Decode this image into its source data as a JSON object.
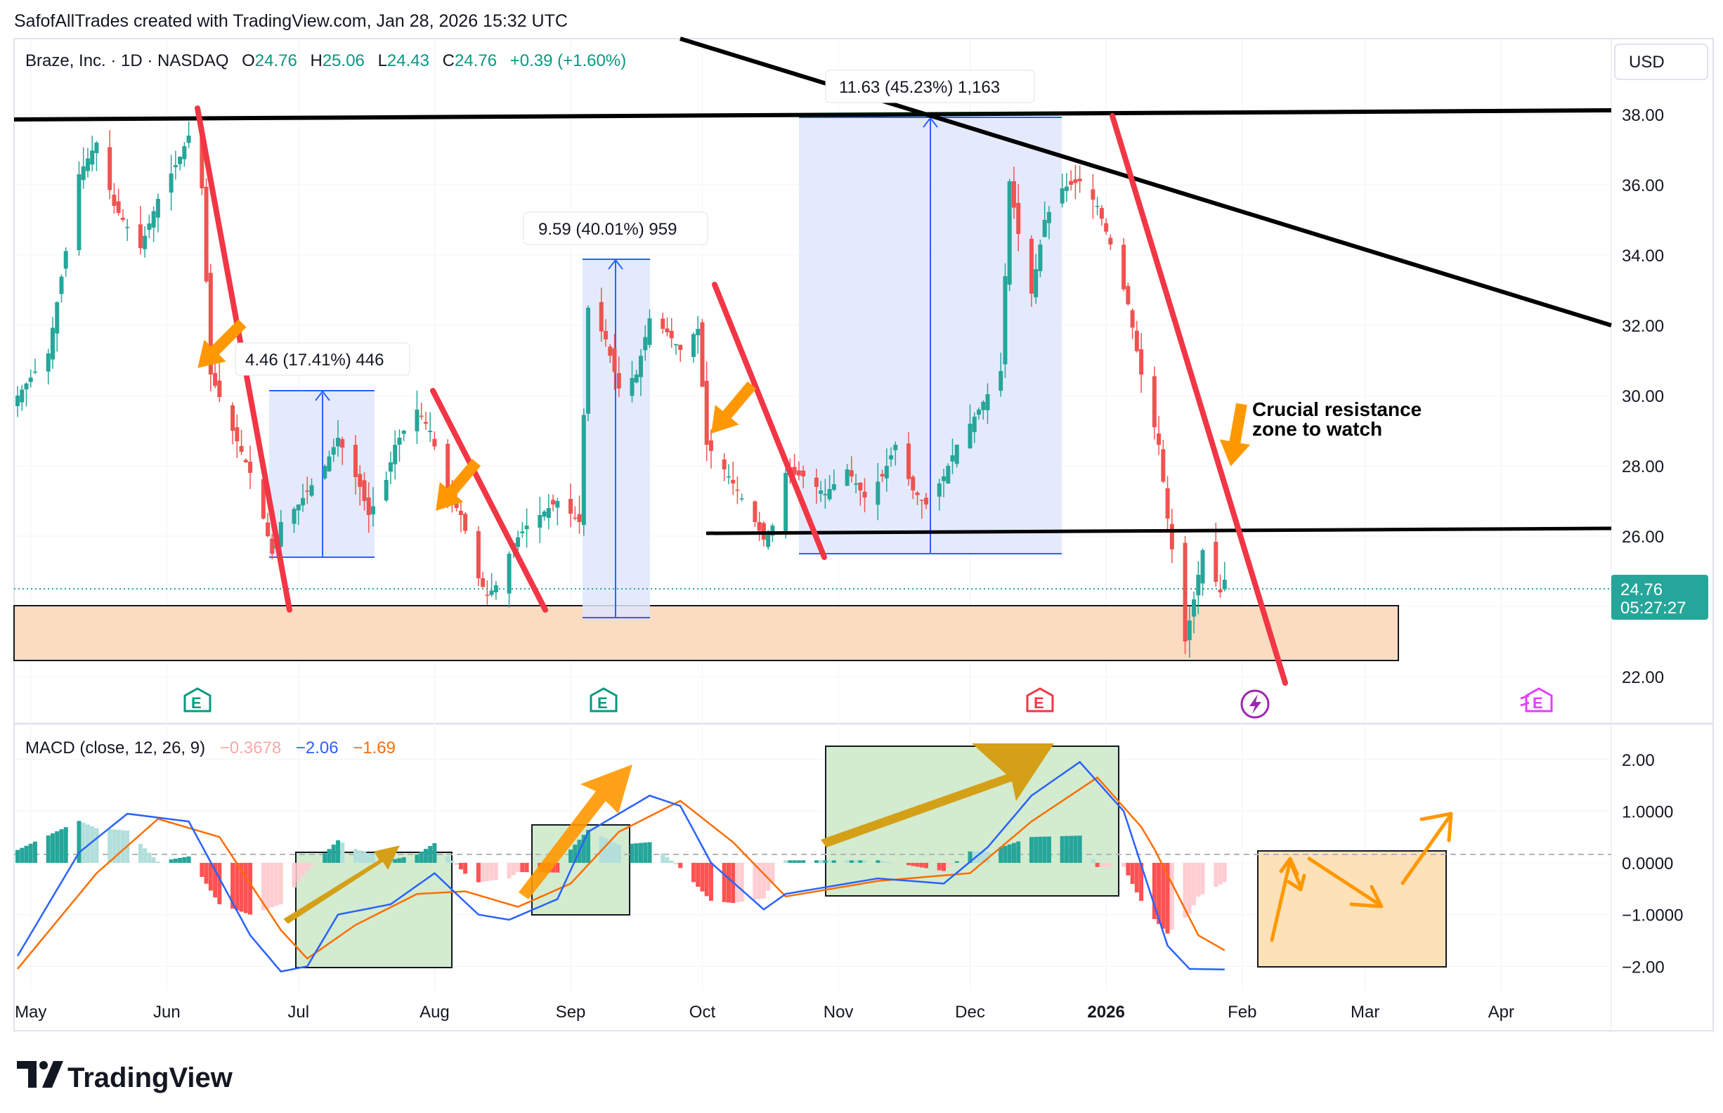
{
  "header": {
    "credit": "SafofAllTrades created with TradingView.com, Jan 28, 2026 15:32 UTC"
  },
  "legend": {
    "symbol": "Braze, Inc. · 1D · NASDAQ",
    "o_label": "O",
    "o": "24.76",
    "h_label": "H",
    "h": "25.06",
    "l_label": "L",
    "l": "24.43",
    "c_label": "C",
    "c": "24.76",
    "change": "+0.39 (+1.60%)"
  },
  "currency": "USD",
  "last_price": {
    "value": "24.76",
    "countdown": "05:27:27"
  },
  "macd_legend": {
    "title": "MACD (close, 12, 26, 9)",
    "hist": "−0.3678",
    "macd": "−2.06",
    "signal": "−1.69"
  },
  "measure_labels": {
    "m1": "4.46 (17.41%) 446",
    "m2": "9.59 (40.01%) 959",
    "m3": "11.63 (45.23%) 1,163"
  },
  "annotation": {
    "line1": "Crucial resistance",
    "line2": "zone to watch"
  },
  "earnings_marker": "E",
  "branding": "TradingView",
  "colors": {
    "up": "#26a69a",
    "down": "#ef5350",
    "trendline": "#f23645",
    "arrow": "#ff9800",
    "measure_fill": "#e1e7fc",
    "measure_line": "#2962ff",
    "support_zone": "#fbdcc0",
    "macd_line": "#2962ff",
    "signal_line": "#ff6d00",
    "macd_box": "#d3ebcf",
    "forecast_box": "#fde1b8"
  },
  "chart_data": {
    "type": "candlestick",
    "title": "Braze, Inc. · 1D · NASDAQ",
    "x_ticks": [
      "May",
      "Jun",
      "Jul",
      "Aug",
      "Sep",
      "Oct",
      "Nov",
      "Dec",
      "2026",
      "Feb",
      "Mar",
      "Apr"
    ],
    "y_ticks": [
      "38.00",
      "36.00",
      "34.00",
      "32.00",
      "30.00",
      "28.00",
      "26.00",
      "24.00",
      "22.00"
    ],
    "ylim": [
      21.6,
      38.6
    ],
    "price_anchors": [
      [
        "2025-04-28",
        30.0
      ],
      [
        "2025-05-05",
        31.2
      ],
      [
        "2025-05-12",
        36.3
      ],
      [
        "2025-05-16",
        37.2
      ],
      [
        "2025-05-20",
        35.4
      ],
      [
        "2025-05-26",
        34.2
      ],
      [
        "2025-05-30",
        35.6
      ],
      [
        "2025-06-04",
        36.8
      ],
      [
        "2025-06-06",
        37.4
      ],
      [
        "2025-06-09",
        35.9
      ],
      [
        "2025-06-11",
        30.6
      ],
      [
        "2025-06-16",
        29.0
      ],
      [
        "2025-06-20",
        27.8
      ],
      [
        "2025-06-23",
        26.5
      ],
      [
        "2025-06-25",
        25.5
      ],
      [
        "2025-06-27",
        26.4
      ],
      [
        "2025-07-01",
        26.9
      ],
      [
        "2025-07-07",
        28.0
      ],
      [
        "2025-07-10",
        28.8
      ],
      [
        "2025-07-15",
        27.4
      ],
      [
        "2025-07-17",
        26.6
      ],
      [
        "2025-07-21",
        27.6
      ],
      [
        "2025-07-23",
        28.6
      ],
      [
        "2025-07-28",
        29.6
      ],
      [
        "2025-07-31",
        29.0
      ],
      [
        "2025-08-04",
        27.2
      ],
      [
        "2025-08-07",
        26.6
      ],
      [
        "2025-08-11",
        24.8
      ],
      [
        "2025-08-13",
        24.3
      ],
      [
        "2025-08-15",
        24.6
      ],
      [
        "2025-08-19",
        25.8
      ],
      [
        "2025-08-22",
        26.3
      ],
      [
        "2025-08-26",
        26.7
      ],
      [
        "2025-08-29",
        27.0
      ],
      [
        "2025-09-03",
        26.4
      ],
      [
        "2025-09-05",
        32.5
      ],
      [
        "2025-09-09",
        31.6
      ],
      [
        "2025-09-12",
        30.2
      ],
      [
        "2025-09-16",
        30.6
      ],
      [
        "2025-09-19",
        32.2
      ],
      [
        "2025-09-23",
        31.8
      ],
      [
        "2025-09-26",
        31.3
      ],
      [
        "2025-09-30",
        31.9
      ],
      [
        "2025-10-02",
        28.6
      ],
      [
        "2025-10-06",
        27.9
      ],
      [
        "2025-10-09",
        27.3
      ],
      [
        "2025-10-13",
        26.4
      ],
      [
        "2025-10-15",
        25.9
      ],
      [
        "2025-10-17",
        26.3
      ],
      [
        "2025-10-20",
        27.8
      ],
      [
        "2025-10-24",
        27.7
      ],
      [
        "2025-10-29",
        27.2
      ],
      [
        "2025-11-03",
        27.9
      ],
      [
        "2025-11-07",
        27.1
      ],
      [
        "2025-11-11",
        27.7
      ],
      [
        "2025-11-14",
        28.6
      ],
      [
        "2025-11-18",
        27.3
      ],
      [
        "2025-11-21",
        26.9
      ],
      [
        "2025-11-25",
        27.7
      ],
      [
        "2025-11-28",
        28.6
      ],
      [
        "2025-12-03",
        29.6
      ],
      [
        "2025-12-08",
        30.7
      ],
      [
        "2025-12-10",
        36.1
      ],
      [
        "2025-12-12",
        34.6
      ],
      [
        "2025-12-15",
        32.9
      ],
      [
        "2025-12-18",
        35.0
      ],
      [
        "2025-12-22",
        35.9
      ],
      [
        "2025-12-26",
        36.1
      ],
      [
        "2025-12-30",
        35.4
      ],
      [
        "2026-01-02",
        34.3
      ],
      [
        "2026-01-06",
        32.6
      ],
      [
        "2026-01-09",
        30.6
      ],
      [
        "2026-01-13",
        28.6
      ],
      [
        "2026-01-15",
        26.5
      ],
      [
        "2026-01-19",
        23.0
      ],
      [
        "2026-01-21",
        24.2
      ],
      [
        "2026-01-23",
        25.6
      ],
      [
        "2026-01-27",
        24.4
      ],
      [
        "2026-01-28",
        24.76
      ]
    ],
    "macd": {
      "title": "MACD (close, 12, 26, 9)",
      "y_ticks": [
        "2.00",
        "1.0000",
        "0.0000",
        "−1.0000",
        "−2.00"
      ],
      "ylim": [
        -2.2,
        2.35
      ],
      "macd_anchors": [
        [
          "2025-04-28",
          -1.8
        ],
        [
          "2025-05-12",
          0.2
        ],
        [
          "2025-05-23",
          0.95
        ],
        [
          "2025-06-06",
          0.8
        ],
        [
          "2025-06-20",
          -1.4
        ],
        [
          "2025-06-27",
          -2.1
        ],
        [
          "2025-07-03",
          -2.0
        ],
        [
          "2025-07-10",
          -1.0
        ],
        [
          "2025-07-22",
          -0.8
        ],
        [
          "2025-08-01",
          -0.2
        ],
        [
          "2025-08-11",
          -1.0
        ],
        [
          "2025-08-18",
          -1.1
        ],
        [
          "2025-08-29",
          -0.7
        ],
        [
          "2025-09-05",
          0.6
        ],
        [
          "2025-09-19",
          1.3
        ],
        [
          "2025-09-26",
          1.1
        ],
        [
          "2025-10-03",
          0.0
        ],
        [
          "2025-10-15",
          -0.9
        ],
        [
          "2025-10-20",
          -0.6
        ],
        [
          "2025-11-10",
          -0.3
        ],
        [
          "2025-11-25",
          -0.4
        ],
        [
          "2025-12-05",
          0.3
        ],
        [
          "2025-12-15",
          1.3
        ],
        [
          "2025-12-26",
          1.95
        ],
        [
          "2026-01-05",
          1.0
        ],
        [
          "2026-01-15",
          -1.6
        ],
        [
          "2026-01-20",
          -2.05
        ],
        [
          "2026-01-28",
          -2.06
        ]
      ],
      "signal_anchors": [
        [
          "2025-04-28",
          -2.05
        ],
        [
          "2025-05-16",
          -0.2
        ],
        [
          "2025-05-30",
          0.85
        ],
        [
          "2025-06-13",
          0.5
        ],
        [
          "2025-06-27",
          -1.3
        ],
        [
          "2025-07-03",
          -1.85
        ],
        [
          "2025-07-14",
          -1.2
        ],
        [
          "2025-07-28",
          -0.6
        ],
        [
          "2025-08-08",
          -0.55
        ],
        [
          "2025-08-20",
          -0.85
        ],
        [
          "2025-09-01",
          -0.4
        ],
        [
          "2025-09-12",
          0.6
        ],
        [
          "2025-09-26",
          1.2
        ],
        [
          "2025-10-08",
          0.4
        ],
        [
          "2025-10-20",
          -0.65
        ],
        [
          "2025-11-10",
          -0.35
        ],
        [
          "2025-12-01",
          -0.2
        ],
        [
          "2025-12-15",
          0.8
        ],
        [
          "2025-12-30",
          1.65
        ],
        [
          "2026-01-10",
          0.6
        ],
        [
          "2026-01-22",
          -1.4
        ],
        [
          "2026-01-28",
          -1.69
        ]
      ],
      "last_hist": -0.3678
    }
  }
}
